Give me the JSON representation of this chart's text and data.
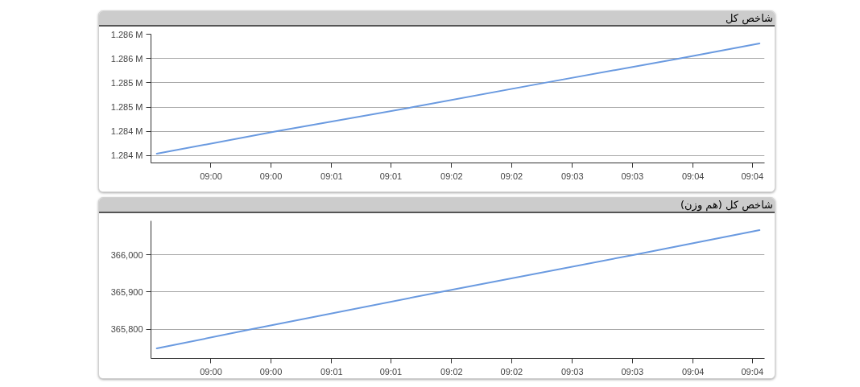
{
  "chart_data": [
    {
      "type": "line",
      "title": "شاخص کل",
      "x": [
        8.9925,
        9.009,
        9.028,
        9.0462,
        9.0648,
        9.0759
      ],
      "values": [
        1284040,
        1284500,
        1285000,
        1285500,
        1286000,
        1286310
      ],
      "color": "#6a9ae0",
      "xlim": [
        8.9917,
        9.0766
      ],
      "ylim": [
        1283850,
        1286500
      ],
      "xticks": [
        {
          "value": 9.0,
          "label": "09:00"
        },
        {
          "value": 9.0083,
          "label": "09:00"
        },
        {
          "value": 9.0167,
          "label": "09:01"
        },
        {
          "value": 9.0249,
          "label": "09:01"
        },
        {
          "value": 9.0333,
          "label": "09:02"
        },
        {
          "value": 9.0416,
          "label": "09:02"
        },
        {
          "value": 9.05,
          "label": "09:03"
        },
        {
          "value": 9.0583,
          "label": "09:03"
        },
        {
          "value": 9.0667,
          "label": "09:04"
        },
        {
          "value": 9.0749,
          "label": "09:04"
        }
      ],
      "yticks": [
        {
          "value": 1284000,
          "label": "1.284 M"
        },
        {
          "value": 1284500,
          "label": "1.284 M"
        },
        {
          "value": 1285000,
          "label": "1.285 M"
        },
        {
          "value": 1285500,
          "label": "1.285 M"
        },
        {
          "value": 1286000,
          "label": "1.286 M"
        },
        {
          "value": 1286500,
          "label": "1.286 M"
        }
      ],
      "grid": "y"
    },
    {
      "type": "line",
      "title": "شاخص کل (هم وزن)",
      "x": [
        8.9925,
        9.0057,
        9.0317,
        9.0584,
        9.0759
      ],
      "values": [
        365748,
        365800,
        365900,
        366000,
        366067
      ],
      "color": "#6a9ae0",
      "xlim": [
        8.9917,
        9.0766
      ],
      "ylim": [
        365721,
        366092
      ],
      "xticks": [
        {
          "value": 9.0,
          "label": "09:00"
        },
        {
          "value": 9.0083,
          "label": "09:00"
        },
        {
          "value": 9.0167,
          "label": "09:01"
        },
        {
          "value": 9.0249,
          "label": "09:01"
        },
        {
          "value": 9.0333,
          "label": "09:02"
        },
        {
          "value": 9.0416,
          "label": "09:02"
        },
        {
          "value": 9.05,
          "label": "09:03"
        },
        {
          "value": 9.0583,
          "label": "09:03"
        },
        {
          "value": 9.0667,
          "label": "09:04"
        },
        {
          "value": 9.0749,
          "label": "09:04"
        }
      ],
      "yticks": [
        {
          "value": 365800,
          "label": "365,800"
        },
        {
          "value": 365900,
          "label": "365,900"
        },
        {
          "value": 366000,
          "label": "366,000"
        }
      ],
      "grid": "y"
    }
  ]
}
